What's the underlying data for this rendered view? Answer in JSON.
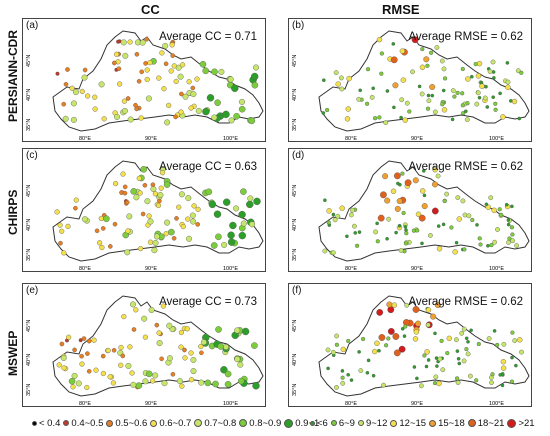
{
  "columns": {
    "cc": "CC",
    "rmse": "RMSE"
  },
  "rows": [
    "PERSIANN-CDR",
    "CHIRPS",
    "MSWEP"
  ],
  "panels": [
    {
      "label": "(a)",
      "avg": "Average CC = 0.71",
      "metric": "cc"
    },
    {
      "label": "(b)",
      "avg": "Average RMSE = 0.62",
      "metric": "rmse"
    },
    {
      "label": "(c)",
      "avg": "Average CC = 0.63",
      "metric": "cc"
    },
    {
      "label": "(d)",
      "avg": "Average RMSE = 0.62",
      "metric": "rmse"
    },
    {
      "label": "(e)",
      "avg": "Average CC = 0.73",
      "metric": "cc"
    },
    {
      "label": "(f)",
      "avg": "Average RMSE = 0.62",
      "metric": "rmse"
    }
  ],
  "axis_labels": {
    "lat": [
      "45°N",
      "40°N",
      "35°N"
    ],
    "lon": [
      "80°E",
      "90°E",
      "100°E"
    ]
  },
  "legend_cc": [
    {
      "label": "< 0.4",
      "color": "#000000"
    },
    {
      "label": "0.4~0.5",
      "color": "#c0392b"
    },
    {
      "label": "0.5~0.6",
      "color": "#e67e22"
    },
    {
      "label": "0.6~0.7",
      "color": "#f4e04d"
    },
    {
      "label": "0.7~0.8",
      "color": "#c6e66b"
    },
    {
      "label": "0.8~0.9",
      "color": "#7ccd3c"
    },
    {
      "label": "0.9~1",
      "color": "#2e9e2a"
    }
  ],
  "legend_rmse": [
    {
      "label": "<6",
      "color": "#2e9e2a"
    },
    {
      "label": "6~9",
      "color": "#7ccd3c"
    },
    {
      "label": "9~12",
      "color": "#c6e66b"
    },
    {
      "label": "12~15",
      "color": "#f4e04d"
    },
    {
      "label": "15~18",
      "color": "#f0a030"
    },
    {
      "label": "18~21",
      "color": "#e0601c"
    },
    {
      "label": ">21",
      "color": "#d01c1c"
    }
  ]
}
